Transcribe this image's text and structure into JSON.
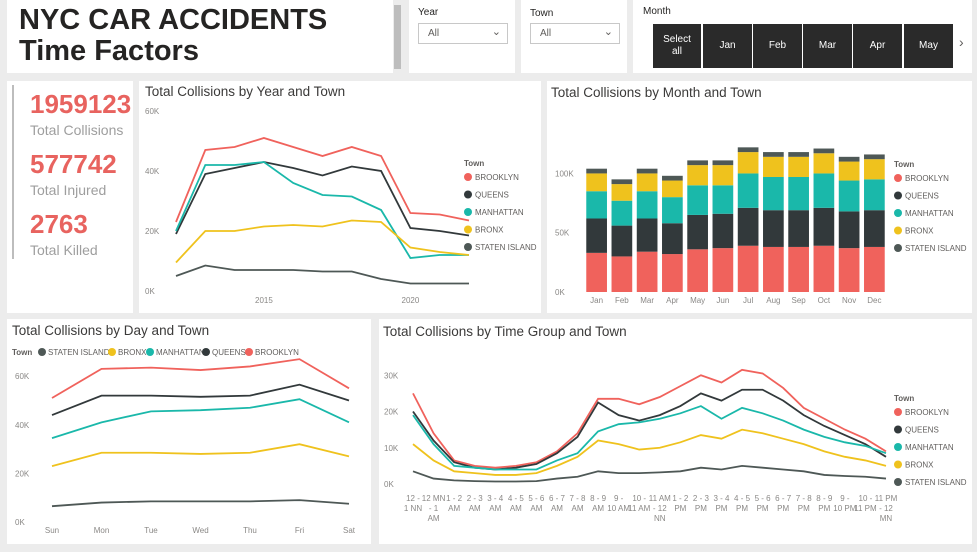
{
  "header": {
    "title_line1": "NYC CAR ACCIDENTS",
    "title_line2": "Time Factors"
  },
  "slicers": {
    "year": {
      "label": "Year",
      "value": "All"
    },
    "town": {
      "label": "Town",
      "value": "All"
    },
    "month": {
      "label": "Month",
      "buttons": [
        "Select all",
        "Jan",
        "Feb",
        "Mar",
        "Apr",
        "May"
      ]
    }
  },
  "kpis": [
    {
      "value": "1959123",
      "label": "Total Collisions"
    },
    {
      "value": "577742",
      "label": "Total Injured"
    },
    {
      "value": "2763",
      "label": "Total Killed"
    }
  ],
  "colors": {
    "BROOKLYN": "#f0625c",
    "QUEENS": "#32393b",
    "MANHATTAN": "#1ab8aa",
    "BRONX": "#efc21d",
    "STATEN ISLAND": "#4e5856",
    "axis": "#8a8886",
    "kpi": "#e8635f"
  },
  "chart_data": [
    {
      "type": "line",
      "title": "Total Collisions by Year and Town",
      "legend_title": "Town",
      "legend_position": "right",
      "x": [
        2012,
        2013,
        2014,
        2015,
        2016,
        2017,
        2018,
        2019,
        2020,
        2021,
        2022
      ],
      "x_ticks": [
        "2015",
        "2020"
      ],
      "y_ticks": [
        "0K",
        "20K",
        "40K",
        "60K"
      ],
      "ylim": [
        0,
        60000
      ],
      "series": [
        {
          "name": "BROOKLYN",
          "values": [
            23000,
            47000,
            48000,
            51000,
            48000,
            45000,
            48000,
            45000,
            26000,
            25500,
            23500
          ]
        },
        {
          "name": "QUEENS",
          "values": [
            19000,
            39000,
            41000,
            43000,
            41000,
            38500,
            41500,
            40000,
            21000,
            20000,
            18500
          ]
        },
        {
          "name": "MANHATTAN",
          "values": [
            20000,
            42000,
            42000,
            43000,
            36000,
            32000,
            31500,
            27000,
            11000,
            12000,
            12000
          ]
        },
        {
          "name": "BRONX",
          "values": [
            9500,
            20000,
            20000,
            21500,
            22000,
            21500,
            23500,
            23000,
            14500,
            13000,
            12000
          ]
        },
        {
          "name": "STATEN ISLAND",
          "values": [
            5000,
            8500,
            7000,
            7000,
            7000,
            6500,
            6500,
            4000,
            2500,
            2500,
            2500
          ]
        }
      ]
    },
    {
      "type": "bar",
      "stacked": true,
      "title": "Total Collisions by Month and Town",
      "legend_title": "Town",
      "legend_position": "right",
      "categories": [
        "Jan",
        "Feb",
        "Mar",
        "Apr",
        "May",
        "Jun",
        "Jul",
        "Aug",
        "Sep",
        "Oct",
        "Nov",
        "Dec"
      ],
      "y_ticks": [
        "0K",
        "50K",
        "100K"
      ],
      "ylim": [
        0,
        140000
      ],
      "series": [
        {
          "name": "BROOKLYN",
          "values": [
            33000,
            30000,
            34000,
            32000,
            36000,
            37000,
            39000,
            38000,
            38000,
            39000,
            37000,
            38000
          ]
        },
        {
          "name": "QUEENS",
          "values": [
            29000,
            26000,
            28000,
            26000,
            29000,
            29000,
            32000,
            31000,
            31000,
            32000,
            31000,
            31000
          ]
        },
        {
          "name": "MANHATTAN",
          "values": [
            23000,
            21000,
            23000,
            22000,
            25000,
            24000,
            29000,
            28000,
            28000,
            29000,
            26000,
            26000
          ]
        },
        {
          "name": "BRONX",
          "values": [
            15000,
            14000,
            15000,
            14000,
            17000,
            17000,
            18000,
            17000,
            17000,
            17000,
            16000,
            17000
          ]
        },
        {
          "name": "STATEN ISLAND",
          "values": [
            4000,
            4000,
            4000,
            4000,
            4000,
            4000,
            4000,
            4000,
            4000,
            4000,
            4000,
            4000
          ]
        }
      ]
    },
    {
      "type": "line",
      "title": "Total Collisions by Day and Town",
      "legend_title": "Town",
      "legend_position": "top",
      "legend_order": [
        "STATEN ISLAND",
        "BRONX",
        "MANHATTAN",
        "QUEENS",
        "BROOKLYN"
      ],
      "categories": [
        "Sun",
        "Mon",
        "Tue",
        "Wed",
        "Thu",
        "Fri",
        "Sat"
      ],
      "y_ticks": [
        "0K",
        "20K",
        "40K",
        "60K"
      ],
      "ylim": [
        0,
        65000
      ],
      "series": [
        {
          "name": "BROOKLYN",
          "values": [
            51000,
            63000,
            63500,
            62500,
            64000,
            67000,
            55000
          ]
        },
        {
          "name": "QUEENS",
          "values": [
            44000,
            52000,
            52000,
            51500,
            52000,
            56500,
            50000
          ]
        },
        {
          "name": "MANHATTAN",
          "values": [
            34500,
            41000,
            45500,
            46000,
            47000,
            50500,
            41000
          ]
        },
        {
          "name": "BRONX",
          "values": [
            23000,
            28500,
            28500,
            28000,
            28500,
            32000,
            27000
          ]
        },
        {
          "name": "STATEN ISLAND",
          "values": [
            6500,
            8000,
            8500,
            8500,
            8500,
            9000,
            7500
          ]
        }
      ]
    },
    {
      "type": "line",
      "title": "Total Collisions by Time Group and Town",
      "legend_title": "Town",
      "legend_position": "right",
      "categories": [
        "12 - 1 NN",
        "12 MN - 1 AM",
        "1 - 2 AM",
        "2 - 3 AM",
        "3 - 4 AM",
        "4 - 5 AM",
        "5 - 6 AM",
        "6 - 7 AM",
        "7 - 8 AM",
        "8 - 9 AM",
        "9 - 10 AM",
        "10 - 11 AM",
        "11 AM - 12 NN",
        "1 - 2 PM",
        "2 - 3 PM",
        "3 - 4 PM",
        "4 - 5 PM",
        "5 - 6 PM",
        "6 - 7 PM",
        "7 - 8 PM",
        "8 - 9 PM",
        "9 - 10 PM",
        "10 - 11 PM",
        "11 PM - 12 MN"
      ],
      "y_ticks": [
        "0K",
        "10K",
        "20K",
        "30K"
      ],
      "ylim": [
        0,
        32000
      ],
      "series": [
        {
          "name": "BROOKLYN",
          "values": [
            25000,
            14000,
            6500,
            5000,
            4500,
            5000,
            6000,
            9000,
            14000,
            23500,
            23500,
            22000,
            24000,
            27000,
            30000,
            28000,
            31500,
            30500,
            26500,
            21000,
            18000,
            15000,
            12500,
            9000
          ]
        },
        {
          "name": "QUEENS",
          "values": [
            20000,
            12000,
            6000,
            4500,
            4000,
            4500,
            5500,
            8500,
            13000,
            22500,
            19000,
            17500,
            19000,
            21500,
            25000,
            23000,
            26000,
            26000,
            23000,
            19000,
            16000,
            13500,
            11000,
            7500
          ]
        },
        {
          "name": "MANHATTAN",
          "values": [
            19000,
            11000,
            5000,
            4500,
            4000,
            4000,
            4000,
            6500,
            8500,
            14500,
            16500,
            17000,
            18000,
            19500,
            21500,
            18000,
            21000,
            19500,
            17500,
            15000,
            13000,
            11500,
            10500,
            8500
          ]
        },
        {
          "name": "BRONX",
          "values": [
            11000,
            6500,
            3500,
            3000,
            2500,
            2500,
            3000,
            5000,
            7500,
            12000,
            11000,
            9500,
            10000,
            11500,
            13500,
            12500,
            15000,
            14000,
            12500,
            11000,
            9000,
            7500,
            6500,
            5000
          ]
        },
        {
          "name": "STATEN ISLAND",
          "values": [
            3500,
            1500,
            1000,
            800,
            700,
            700,
            800,
            1500,
            2000,
            3500,
            3000,
            3000,
            3200,
            3500,
            4500,
            4000,
            5000,
            4500,
            4000,
            3500,
            2500,
            2200,
            2000,
            1500
          ]
        }
      ]
    }
  ]
}
